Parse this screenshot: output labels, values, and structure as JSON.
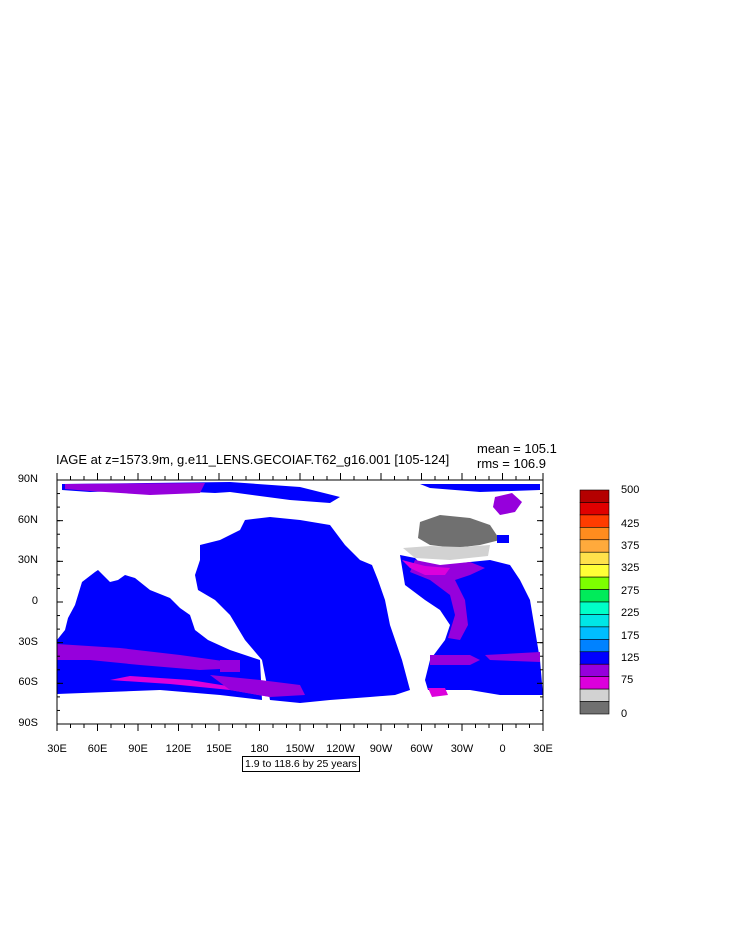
{
  "title": "IAGE at z=1573.9m, g.e11_LENS.GECOIAF.T62_g16.001 [105-124]",
  "stats": {
    "mean": "mean = 105.1",
    "rms": "rms = 106.9"
  },
  "lat_labels": [
    "90N",
    "60N",
    "30N",
    "0",
    "30S",
    "60S",
    "90S"
  ],
  "lon_labels": [
    "30E",
    "60E",
    "90E",
    "120E",
    "150E",
    "180",
    "150W",
    "120W",
    "90W",
    "60W",
    "30W",
    "0",
    "30E"
  ],
  "contour_info": "1.9 to 118.6 by 25 years",
  "colorbar": {
    "labels": [
      "500",
      "425",
      "375",
      "325",
      "275",
      "225",
      "175",
      "125",
      "75",
      "0"
    ],
    "colors": [
      "#B40000",
      "#E00000",
      "#FF3C00",
      "#FF8C1E",
      "#FFAA3C",
      "#FFE14B",
      "#FFFF37",
      "#7DFF00",
      "#00EB5A",
      "#00FFC8",
      "#00E6E6",
      "#00BEFF",
      "#0082FF",
      "#0000FF",
      "#9600DC",
      "#DC00DC",
      "#D2D2D2",
      "#707070"
    ]
  },
  "colors": {
    "land": "#ffffff",
    "ocean_main": "#0000FF",
    "purple": "#9600DC",
    "magenta": "#DC00DC",
    "gray_light": "#D2D2D2",
    "gray_dark": "#707070"
  }
}
